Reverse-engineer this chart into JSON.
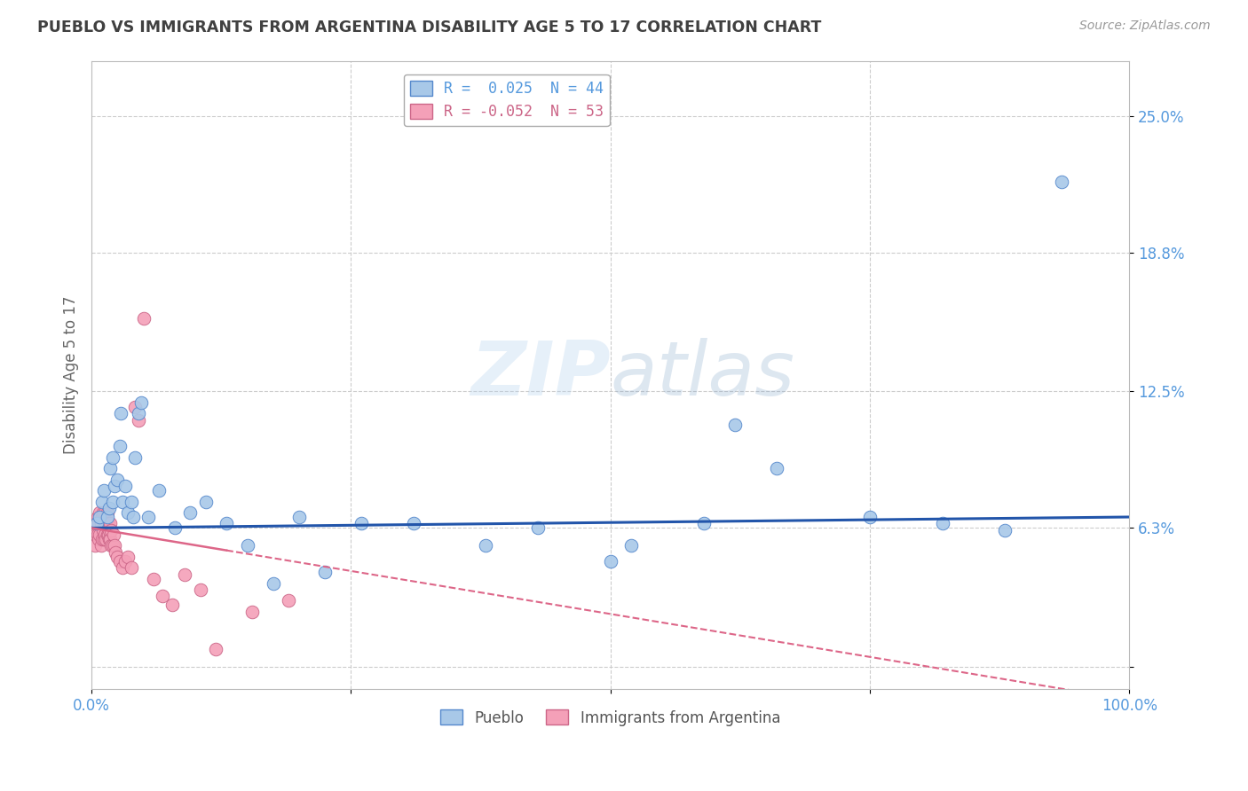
{
  "title": "PUEBLO VS IMMIGRANTS FROM ARGENTINA DISABILITY AGE 5 TO 17 CORRELATION CHART",
  "source": "Source: ZipAtlas.com",
  "ylabel": "Disability Age 5 to 17",
  "xlabel": "",
  "xlim": [
    0.0,
    1.0
  ],
  "ylim": [
    -0.01,
    0.275
  ],
  "ytick_vals": [
    0.0,
    0.063,
    0.125,
    0.188,
    0.25
  ],
  "ytick_labels": [
    "",
    "6.3%",
    "12.5%",
    "18.8%",
    "25.0%"
  ],
  "xtick_vals": [
    0.0,
    0.25,
    0.5,
    0.75,
    1.0
  ],
  "xtick_labels": [
    "0.0%",
    "",
    "",
    "",
    "100.0%"
  ],
  "watermark": "ZIPatlas",
  "blue_r": 0.025,
  "blue_n": 44,
  "pink_r": -0.052,
  "pink_n": 53,
  "blue_color": "#a8c8e8",
  "pink_color": "#f4a0b8",
  "blue_edge_color": "#5588cc",
  "pink_edge_color": "#cc6688",
  "blue_line_color": "#2255aa",
  "pink_line_color": "#dd6688",
  "background_color": "#ffffff",
  "grid_color": "#cccccc",
  "title_color": "#404040",
  "axis_label_color": "#5599dd",
  "legend_label_blue": "Pueblo",
  "legend_label_pink": "Immigrants from Argentina",
  "blue_points_x": [
    0.005,
    0.008,
    0.01,
    0.012,
    0.015,
    0.017,
    0.018,
    0.02,
    0.02,
    0.022,
    0.025,
    0.027,
    0.028,
    0.03,
    0.032,
    0.035,
    0.038,
    0.04,
    0.042,
    0.045,
    0.048,
    0.055,
    0.065,
    0.08,
    0.095,
    0.11,
    0.13,
    0.15,
    0.175,
    0.2,
    0.225,
    0.26,
    0.31,
    0.38,
    0.43,
    0.5,
    0.52,
    0.59,
    0.62,
    0.66,
    0.75,
    0.82,
    0.88,
    0.935
  ],
  "blue_points_y": [
    0.065,
    0.068,
    0.075,
    0.08,
    0.068,
    0.072,
    0.09,
    0.095,
    0.075,
    0.082,
    0.085,
    0.1,
    0.115,
    0.075,
    0.082,
    0.07,
    0.075,
    0.068,
    0.095,
    0.115,
    0.12,
    0.068,
    0.08,
    0.063,
    0.07,
    0.075,
    0.065,
    0.055,
    0.038,
    0.068,
    0.043,
    0.065,
    0.065,
    0.055,
    0.063,
    0.048,
    0.055,
    0.065,
    0.11,
    0.09,
    0.068,
    0.065,
    0.062,
    0.22
  ],
  "pink_points_x": [
    0.002,
    0.003,
    0.004,
    0.005,
    0.006,
    0.006,
    0.007,
    0.007,
    0.008,
    0.008,
    0.009,
    0.009,
    0.01,
    0.01,
    0.011,
    0.011,
    0.012,
    0.012,
    0.013,
    0.013,
    0.014,
    0.014,
    0.015,
    0.015,
    0.016,
    0.016,
    0.017,
    0.017,
    0.018,
    0.018,
    0.019,
    0.019,
    0.02,
    0.021,
    0.022,
    0.023,
    0.025,
    0.027,
    0.03,
    0.032,
    0.035,
    0.038,
    0.042,
    0.045,
    0.05,
    0.06,
    0.068,
    0.078,
    0.09,
    0.105,
    0.12,
    0.155,
    0.19
  ],
  "pink_points_y": [
    0.062,
    0.055,
    0.06,
    0.065,
    0.06,
    0.068,
    0.058,
    0.065,
    0.06,
    0.07,
    0.055,
    0.065,
    0.058,
    0.068,
    0.062,
    0.07,
    0.058,
    0.065,
    0.06,
    0.07,
    0.058,
    0.065,
    0.06,
    0.07,
    0.06,
    0.065,
    0.058,
    0.062,
    0.058,
    0.065,
    0.055,
    0.062,
    0.055,
    0.06,
    0.055,
    0.052,
    0.05,
    0.048,
    0.045,
    0.048,
    0.05,
    0.045,
    0.118,
    0.112,
    0.158,
    0.04,
    0.032,
    0.028,
    0.042,
    0.035,
    0.008,
    0.025,
    0.03
  ],
  "blue_trend_x": [
    0.0,
    1.0
  ],
  "blue_trend_y": [
    0.063,
    0.068
  ],
  "pink_trend_x0": 0.0,
  "pink_trend_y0": 0.063,
  "pink_trend_x1": 1.0,
  "pink_trend_y1": -0.015
}
